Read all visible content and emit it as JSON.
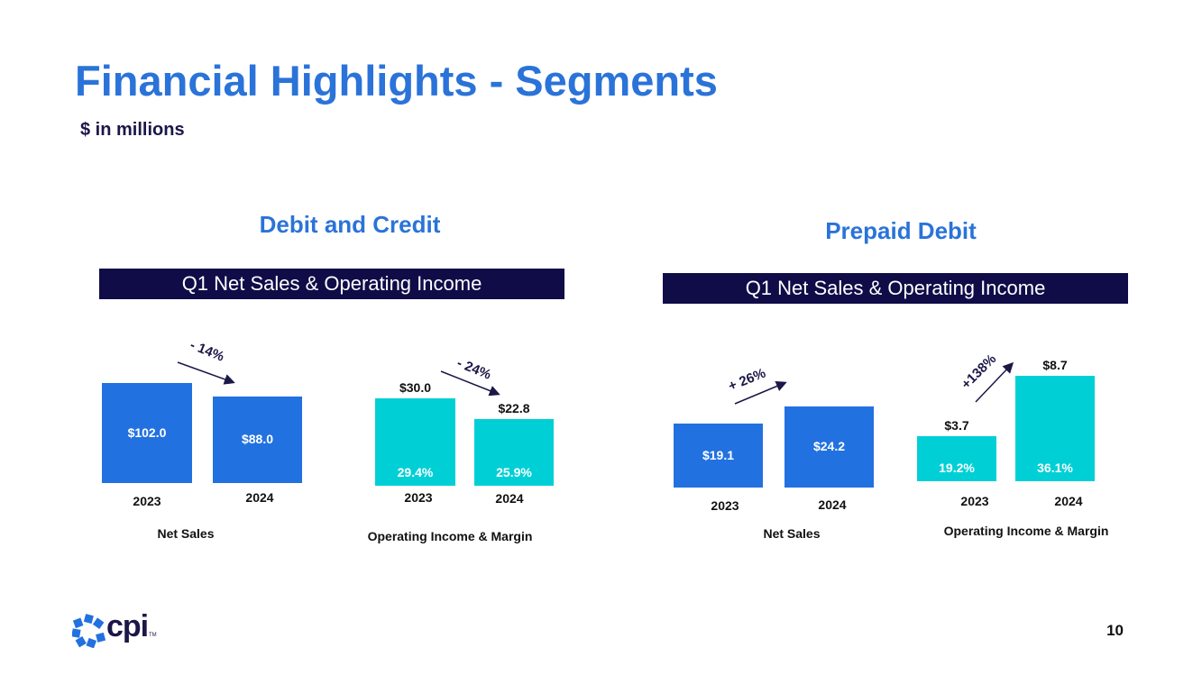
{
  "title": "Financial Highlights - Segments",
  "subtitle": "$ in millions",
  "page_number": "10",
  "logo": {
    "text": "cpi",
    "trademark": "TM",
    "icon": "cpi-logo-icon"
  },
  "colors": {
    "title": "#2a73d9",
    "banner": "#0f0c48",
    "net_sales_bar": "#2271e0",
    "operating_income_bar": "#00d0d6",
    "arrow": "#1b1747"
  },
  "sections": [
    {
      "title": "Debit and Credit",
      "banner": "Q1 Net Sales & Operating Income",
      "net_sales": {
        "caption": "Net Sales",
        "change": "- 14%"
      },
      "operating_income": {
        "caption": "Operating Income & Margin",
        "change": "- 24%"
      }
    },
    {
      "title": "Prepaid Debit",
      "banner": "Q1 Net Sales & Operating Income",
      "net_sales": {
        "caption": "Net Sales",
        "change": "+ 26%"
      },
      "operating_income": {
        "caption": "Operating Income & Margin",
        "change": "+138%"
      }
    }
  ],
  "chart_data": [
    {
      "type": "bar",
      "categories": [
        "2023",
        "2024"
      ],
      "values": [
        102.0,
        88.0
      ],
      "labels": [
        "$102.0",
        "$88.0"
      ],
      "xlabel": "Net Sales",
      "change": "- 14%"
    },
    {
      "type": "bar",
      "categories": [
        "2023",
        "2024"
      ],
      "values": [
        30.0,
        22.8
      ],
      "labels": [
        "$30.0",
        "$22.8"
      ],
      "margins": [
        "29.4%",
        "25.9%"
      ],
      "xlabel": "Operating Income & Margin",
      "change": "- 24%"
    },
    {
      "type": "bar",
      "categories": [
        "2023",
        "2024"
      ],
      "values": [
        19.1,
        24.2
      ],
      "labels": [
        "$19.1",
        "$24.2"
      ],
      "xlabel": "Net Sales",
      "change": "+ 26%"
    },
    {
      "type": "bar",
      "categories": [
        "2023",
        "2024"
      ],
      "values": [
        3.7,
        8.7
      ],
      "labels": [
        "$3.7",
        "$8.7"
      ],
      "margins": [
        "19.2%",
        "36.1%"
      ],
      "xlabel": "Operating Income & Margin",
      "change": "+138%"
    }
  ]
}
